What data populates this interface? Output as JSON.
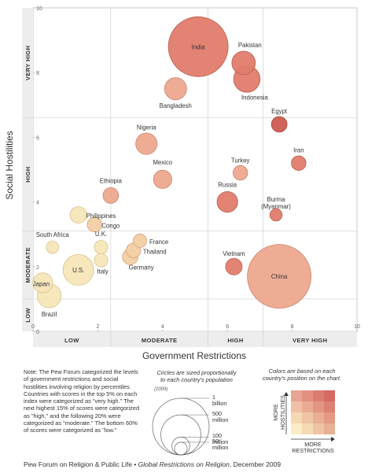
{
  "chart_data": {
    "type": "scatter",
    "xlabel": "Government Restrictions",
    "ylabel": "Social Hostilities",
    "xlim": [
      0,
      10
    ],
    "ylim": [
      0,
      10
    ],
    "x_ticks": [
      0,
      2,
      4,
      6,
      8,
      10
    ],
    "y_ticks": [
      0,
      2,
      4,
      6,
      8,
      10
    ],
    "x_categories": [
      "LOW",
      "MODERATE",
      "HIGH",
      "VERY HIGH"
    ],
    "x_category_bounds": [
      0,
      2.4,
      5.4,
      7.1,
      10
    ],
    "y_categories": [
      "LOW",
      "MODERATE",
      "HIGH",
      "VERY HIGH"
    ],
    "y_category_bounds": [
      0,
      1.0,
      3.1,
      6.6,
      10
    ],
    "grid": true,
    "size_unit": "population (billions)",
    "points": [
      {
        "label": "India",
        "x": 5.1,
        "y": 8.8,
        "pop": 1.17,
        "hue": 3
      },
      {
        "label": "Pakistan",
        "x": 6.5,
        "y": 8.3,
        "pop": 0.18,
        "hue": 3
      },
      {
        "label": "Indonesia",
        "x": 6.6,
        "y": 7.8,
        "pop": 0.23,
        "hue": 3
      },
      {
        "label": "Bangladesh",
        "x": 4.4,
        "y": 7.5,
        "pop": 0.16,
        "hue": 2
      },
      {
        "label": "Egypt",
        "x": 7.6,
        "y": 6.4,
        "pop": 0.08,
        "hue": 4
      },
      {
        "label": "Nigeria",
        "x": 3.5,
        "y": 5.8,
        "pop": 0.15,
        "hue": 2
      },
      {
        "label": "Iran",
        "x": 8.2,
        "y": 5.2,
        "pop": 0.07,
        "hue": 3
      },
      {
        "label": "Turkey",
        "x": 6.4,
        "y": 4.9,
        "pop": 0.07,
        "hue": 2
      },
      {
        "label": "Mexico",
        "x": 4.0,
        "y": 4.7,
        "pop": 0.11,
        "hue": 2
      },
      {
        "label": "Ethiopia",
        "x": 2.4,
        "y": 4.2,
        "pop": 0.08,
        "hue": 2
      },
      {
        "label": "Russia",
        "x": 6.0,
        "y": 4.0,
        "pop": 0.14,
        "hue": 3
      },
      {
        "label": "Burma (Myanmar)",
        "x": 7.5,
        "y": 3.6,
        "pop": 0.05,
        "hue": 3
      },
      {
        "label": "Philippines",
        "x": 1.4,
        "y": 3.6,
        "pop": 0.09,
        "hue": 0
      },
      {
        "label": "Congo",
        "x": 1.9,
        "y": 3.3,
        "pop": 0.07,
        "hue": 1
      },
      {
        "label": "France",
        "x": 3.3,
        "y": 2.8,
        "pop": 0.06,
        "hue": 1
      },
      {
        "label": "Thailand",
        "x": 3.1,
        "y": 2.5,
        "pop": 0.07,
        "hue": 1
      },
      {
        "label": "South Africa",
        "x": 0.6,
        "y": 2.6,
        "pop": 0.05,
        "hue": 0
      },
      {
        "label": "U.K.",
        "x": 2.1,
        "y": 2.6,
        "pop": 0.06,
        "hue": 0
      },
      {
        "label": "Germany",
        "x": 3.0,
        "y": 2.3,
        "pop": 0.08,
        "hue": 1
      },
      {
        "label": "Italy",
        "x": 2.1,
        "y": 2.2,
        "pop": 0.06,
        "hue": 0
      },
      {
        "label": "U.S.",
        "x": 1.4,
        "y": 1.9,
        "pop": 0.31,
        "hue": 0
      },
      {
        "label": "Vietnam",
        "x": 6.2,
        "y": 2.0,
        "pop": 0.09,
        "hue": 3
      },
      {
        "label": "China",
        "x": 7.6,
        "y": 1.7,
        "pop": 1.33,
        "hue": 2
      },
      {
        "label": "Japan",
        "x": 0.3,
        "y": 1.5,
        "pop": 0.13,
        "hue": 0
      },
      {
        "label": "Brazil",
        "x": 0.5,
        "y": 1.1,
        "pop": 0.19,
        "hue": 0
      }
    ],
    "colors": [
      "#f6e6b8",
      "#f2cfa3",
      "#eda88f",
      "#e07c6c",
      "#cc5a50"
    ]
  },
  "size_legend": {
    "title": "Circles are sized proportionally to each country's population",
    "year": "(2009)",
    "entries": [
      {
        "label": "1 billion",
        "lines": [
          "1",
          "billion"
        ],
        "pop": 1.0
      },
      {
        "label": "500 million",
        "lines": [
          "500",
          "million"
        ],
        "pop": 0.5
      },
      {
        "label": "100 million",
        "lines": [
          "100",
          "million"
        ],
        "pop": 0.1
      },
      {
        "label": "50 million",
        "lines": [
          "50",
          "million"
        ],
        "pop": 0.05
      }
    ]
  },
  "color_legend": {
    "title": "Colors are based on each country's position on the chart.",
    "y_label": "MORE HOSTILITIES",
    "x_label": "MORE RESTRICTIONS",
    "grid": [
      [
        "#e8a493",
        "#e29081",
        "#dc7c70",
        "#d56a60"
      ],
      [
        "#f0c1a5",
        "#eaaa94",
        "#e39583",
        "#dc8273"
      ],
      [
        "#f5d8b4",
        "#f0c5a4",
        "#e9ae93",
        "#e29a83"
      ],
      [
        "#f9ecc6",
        "#f4dab4",
        "#eec4a3",
        "#e7b095"
      ]
    ]
  },
  "note": "Note: The Pew Forum categorized the levels of government restrictions and social hostilities involving religion by percentiles. Countries with scores in the top 5% on each index were categorized as \"very high.\" The next highest 15% of scores were categorized as \"high,\" and the following 20% were categorized as \"moderate.\" The bottom 60% of scores were categorized as \"low.\"",
  "credit": {
    "source": "Pew Forum on Religion & Public Life • ",
    "report": "Global Restrictions on Religion",
    "date": ", December 2009"
  }
}
